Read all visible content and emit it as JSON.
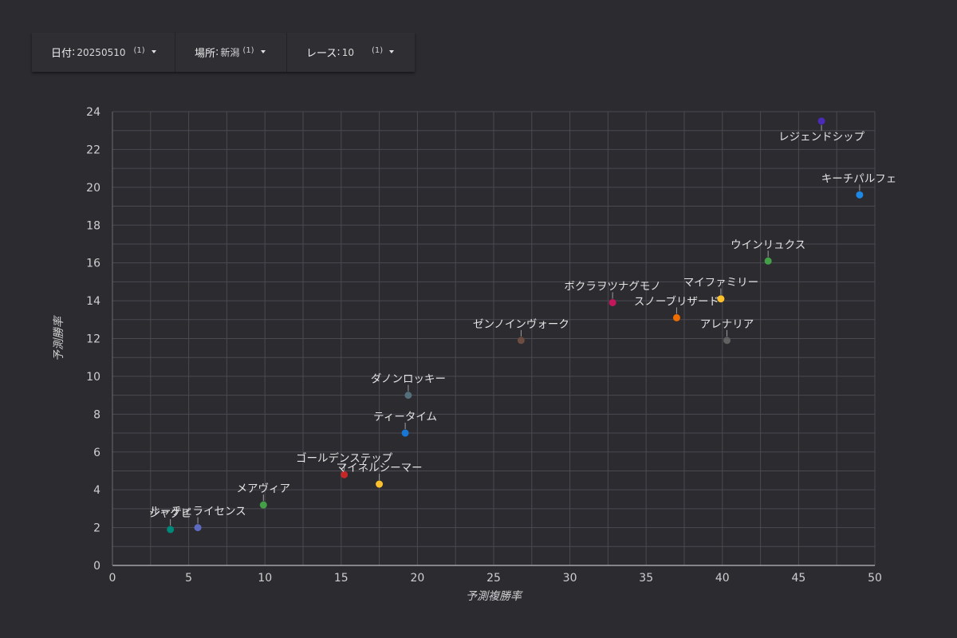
{
  "filters": {
    "date": {
      "label": "日付",
      "value": "20250510",
      "count": "(1)"
    },
    "place": {
      "label": "場所",
      "value": "新潟",
      "count": "(1)"
    },
    "race": {
      "label": "レース",
      "value": "10",
      "count": "(1)"
    }
  },
  "chart_data": {
    "type": "scatter",
    "title": "",
    "xlabel": "予測複勝率",
    "ylabel": "予測勝率",
    "xlim": [
      0,
      50
    ],
    "ylim": [
      0,
      24
    ],
    "xticks": [
      "0",
      "5",
      "10",
      "15",
      "20",
      "25",
      "30",
      "35",
      "40",
      "45",
      "50"
    ],
    "yticks": [
      "0",
      "2",
      "4",
      "6",
      "8",
      "10",
      "12",
      "14",
      "16",
      "18",
      "20",
      "22",
      "24"
    ],
    "grid": true,
    "points": [
      {
        "name": "レジェンドシップ",
        "x": 46.5,
        "y": 23.5,
        "color": "#4a2bb5"
      },
      {
        "name": "キーチパルフェ",
        "x": 49.0,
        "y": 19.6,
        "color": "#1e88e5"
      },
      {
        "name": "ウインリュクス",
        "x": 43.0,
        "y": 16.1,
        "color": "#43a047"
      },
      {
        "name": "マイファミリー",
        "x": 39.9,
        "y": 14.1,
        "color": "#fbc02d"
      },
      {
        "name": "ボクラヲツナグモノ",
        "x": 32.8,
        "y": 13.9,
        "color": "#c2185b"
      },
      {
        "name": "スノーブリザード",
        "x": 37.0,
        "y": 13.1,
        "color": "#ef6c00"
      },
      {
        "name": "アレナリア",
        "x": 40.3,
        "y": 11.9,
        "color": "#616161"
      },
      {
        "name": "ゼンノインヴォーク",
        "x": 26.8,
        "y": 11.9,
        "color": "#6d4c41"
      },
      {
        "name": "ダノンロッキー",
        "x": 19.4,
        "y": 9.0,
        "color": "#546e7a"
      },
      {
        "name": "ティータイム",
        "x": 19.2,
        "y": 7.0,
        "color": "#1976d2"
      },
      {
        "name": "ゴールデンステップ",
        "x": 15.2,
        "y": 4.8,
        "color": "#c62828"
      },
      {
        "name": "マイネルシーマー",
        "x": 17.5,
        "y": 4.3,
        "color": "#fbc02d"
      },
      {
        "name": "メアヴィア",
        "x": 9.9,
        "y": 3.2,
        "color": "#43a047"
      },
      {
        "name": "ルーチェライセンス",
        "x": 5.6,
        "y": 2.0,
        "color": "#5c6bc0"
      },
      {
        "name": "ジャグビ",
        "x": 3.8,
        "y": 1.9,
        "color": "#00897b"
      }
    ]
  }
}
